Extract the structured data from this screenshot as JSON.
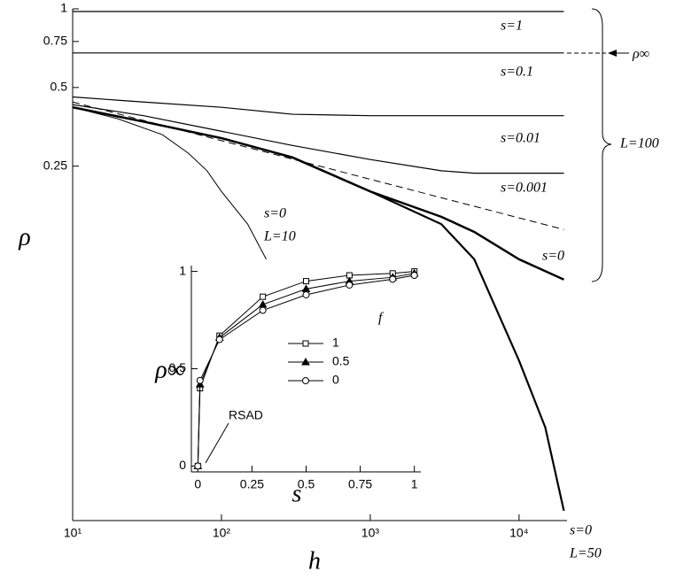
{
  "chart_data": [
    {
      "type": "line",
      "xlabel": "h",
      "ylabel": "ρ",
      "xlog": true,
      "ylog": true,
      "xlim": [
        10,
        21000
      ],
      "ylim": [
        0.011,
        1
      ],
      "xticks": [
        {
          "value": 10,
          "label": "10¹"
        },
        {
          "value": 100,
          "label": "10²"
        },
        {
          "value": 1000,
          "label": "10³"
        },
        {
          "value": 10000,
          "label": "10⁴"
        }
      ],
      "yticks": [
        1,
        0.75,
        0.5,
        0.25
      ],
      "series": [
        {
          "color": "#000000",
          "width": 1.2,
          "x": [
            10,
            20000
          ],
          "values": [
            0.977,
            0.977
          ]
        },
        {
          "color": "#000000",
          "width": 1.2,
          "x": [
            10,
            20000
          ],
          "values": [
            0.678,
            0.678
          ]
        },
        {
          "color": "#000000",
          "width": 1.2,
          "x": [
            10,
            30,
            100,
            300,
            1000,
            20000
          ],
          "values": [
            0.46,
            0.44,
            0.42,
            0.395,
            0.39,
            0.39
          ]
        },
        {
          "color": "#000000",
          "width": 1.2,
          "x": [
            10,
            30,
            100,
            300,
            1000,
            3000,
            5000,
            20000
          ],
          "values": [
            0.43,
            0.39,
            0.34,
            0.3,
            0.265,
            0.24,
            0.235,
            0.235
          ]
        },
        {
          "color": "#000000",
          "width": 1,
          "dashed": true,
          "x": [
            10,
            20000
          ],
          "values": [
            0.44,
            0.143
          ]
        },
        {
          "color": "#000000",
          "width": 2.5,
          "x": [
            10,
            30,
            100,
            300,
            1000,
            3000,
            5000,
            10000,
            20000
          ],
          "values": [
            0.42,
            0.37,
            0.32,
            0.27,
            0.2,
            0.16,
            0.14,
            0.11,
            0.092
          ]
        },
        {
          "color": "#000000",
          "width": 2.2,
          "x": [
            10,
            30,
            100,
            300,
            1000,
            3000,
            5000,
            10000,
            15000,
            20000
          ],
          "values": [
            0.42,
            0.37,
            0.32,
            0.27,
            0.2,
            0.15,
            0.11,
            0.045,
            0.025,
            0.012
          ]
        },
        {
          "color": "#000000",
          "width": 1,
          "x": [
            10,
            20,
            40,
            60,
            80,
            100,
            150,
            200
          ],
          "values": [
            0.42,
            0.38,
            0.33,
            0.28,
            0.24,
            0.2,
            0.15,
            0.11
          ]
        }
      ],
      "annotations": [
        "s=1",
        "s=0.1",
        "s=0.01",
        "s=0.001",
        "s=0",
        "s=0",
        "L=10",
        "s=0",
        "L=50",
        "L=100",
        "ρ∞"
      ]
    },
    {
      "type": "line",
      "xlabel": "s",
      "ylabel": "ρ∞",
      "xlim": [
        -0.03,
        1.03
      ],
      "ylim": [
        -0.03,
        1.03
      ],
      "xticks": [
        0,
        0.25,
        0.5,
        0.75,
        1
      ],
      "yticks": [
        0,
        0.5,
        1
      ],
      "legend": "center",
      "legend_title": "f",
      "series": [
        {
          "name": "1",
          "marker": "square",
          "color": "#000000",
          "x": [
            0,
            0.01,
            0.1,
            0.3,
            0.5,
            0.7,
            0.9,
            1
          ],
          "values": [
            0,
            0.4,
            0.67,
            0.87,
            0.95,
            0.98,
            0.99,
            1
          ]
        },
        {
          "name": "0.5",
          "marker": "triangle",
          "color": "#000000",
          "x": [
            0,
            0.01,
            0.1,
            0.3,
            0.5,
            0.7,
            0.9,
            1
          ],
          "values": [
            0,
            0.42,
            0.66,
            0.83,
            0.91,
            0.95,
            0.97,
            0.99
          ]
        },
        {
          "name": "0",
          "marker": "circle",
          "color": "#000000",
          "x": [
            0,
            0.01,
            0.1,
            0.3,
            0.5,
            0.7,
            0.9,
            1
          ],
          "values": [
            0,
            0.44,
            0.65,
            0.8,
            0.88,
            0.93,
            0.96,
            0.98
          ]
        }
      ],
      "annotations": [
        "RSAD"
      ]
    }
  ]
}
